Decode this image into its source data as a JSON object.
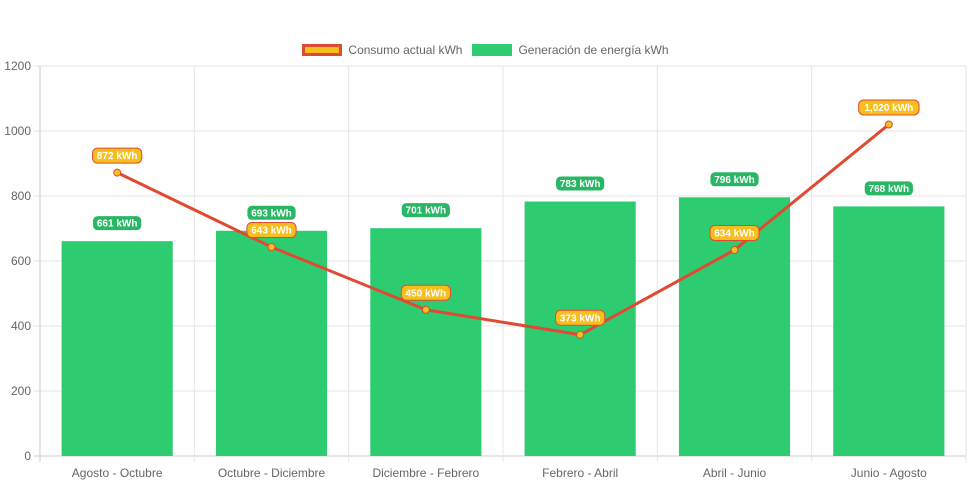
{
  "chart_data": {
    "type": "bar",
    "title": "",
    "xlabel": "",
    "ylabel": "",
    "ylim": [
      0,
      1200
    ],
    "yticks": [
      0,
      200,
      400,
      600,
      800,
      1000,
      1200
    ],
    "categories": [
      "Agosto - Octubre",
      "Octubre - Diciembre",
      "Diciembre - Febrero",
      "Febrero - Abril",
      "Abril - Junio",
      "Junio - Agosto"
    ],
    "legend_position": "top-center",
    "grid": true,
    "unit_suffix": " kWh",
    "series": [
      {
        "name": "Consumo actual kWh",
        "type": "line",
        "values": [
          872,
          643,
          450,
          373,
          634,
          1020
        ],
        "labels": [
          "872 kWh",
          "643 kWh",
          "450 kWh",
          "373 kWh",
          "634 kWh",
          "1,020 kWh"
        ],
        "color": "#e04a33",
        "fill": "#f6bf1e"
      },
      {
        "name": "Generación de energía kWh",
        "type": "bar",
        "values": [
          661,
          693,
          701,
          783,
          796,
          768
        ],
        "labels": [
          "661 kWh",
          "693 kWh",
          "701 kWh",
          "783 kWh",
          "796 kWh",
          "768 kWh"
        ],
        "color": "#2ecc71"
      }
    ]
  }
}
